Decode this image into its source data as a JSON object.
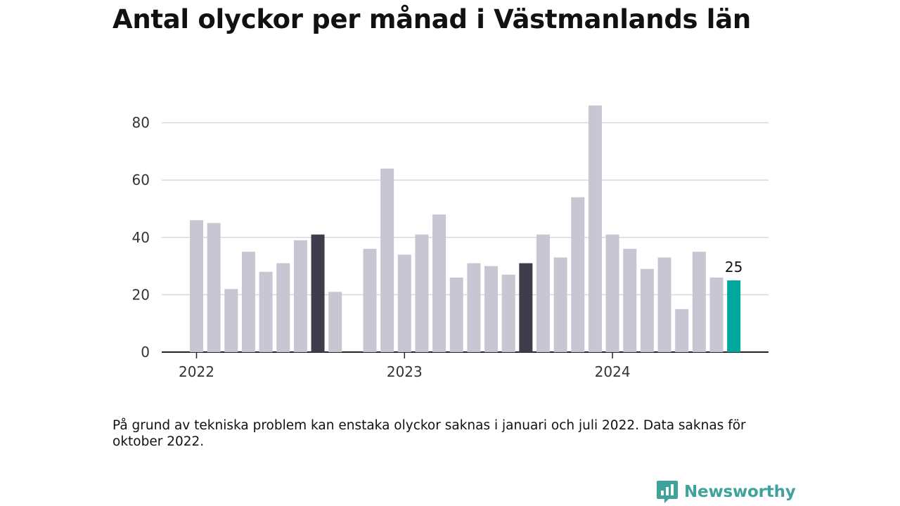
{
  "title": "Antal olyckor per månad i Västmanlands län",
  "footnote": "På grund av tekniska problem kan enstaka olyckor saknas i januari och juli 2022. Data saknas för oktober 2022.",
  "brand": {
    "name": "Newsworthy",
    "icon": "newsworthy-logo-icon",
    "color": "#3fa39c"
  },
  "colors": {
    "default": "#c8c6d2",
    "highlight": "#3e3d4b",
    "current": "#00a79d",
    "grid": "#d9d9d9",
    "axis": "#222222"
  },
  "chart_data": {
    "type": "bar",
    "x": [
      "2022-01",
      "2022-02",
      "2022-03",
      "2022-04",
      "2022-05",
      "2022-06",
      "2022-07",
      "2022-08",
      "2022-09",
      "2022-10",
      "2022-11",
      "2022-12",
      "2023-01",
      "2023-02",
      "2023-03",
      "2023-04",
      "2023-05",
      "2023-06",
      "2023-07",
      "2023-08",
      "2023-09",
      "2023-10",
      "2023-11",
      "2023-12",
      "2024-01",
      "2024-02",
      "2024-03",
      "2024-04",
      "2024-05",
      "2024-06",
      "2024-07",
      "2024-08"
    ],
    "values": [
      46,
      45,
      22,
      35,
      28,
      31,
      39,
      41,
      21,
      null,
      36,
      64,
      34,
      41,
      48,
      26,
      31,
      30,
      27,
      31,
      41,
      33,
      54,
      86,
      41,
      36,
      29,
      33,
      15,
      35,
      26,
      25
    ],
    "highlight_months": [
      "2022-08",
      "2023-08"
    ],
    "current_month": "2024-08",
    "x_ticks": [
      "2022",
      "2023",
      "2024"
    ],
    "y_ticks": [
      0,
      20,
      40,
      60,
      80
    ],
    "ylim": [
      0,
      88
    ],
    "data_label": "25",
    "grid": true
  }
}
